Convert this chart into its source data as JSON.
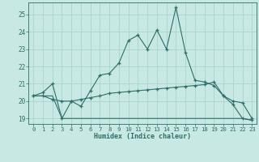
{
  "title": "",
  "xlabel": "Humidex (Indice chaleur)",
  "xlim": [
    -0.5,
    23.5
  ],
  "ylim": [
    18.7,
    25.7
  ],
  "yticks": [
    19,
    20,
    21,
    22,
    23,
    24,
    25
  ],
  "xticks": [
    0,
    1,
    2,
    3,
    4,
    5,
    6,
    7,
    8,
    9,
    10,
    11,
    12,
    13,
    14,
    15,
    16,
    17,
    18,
    19,
    20,
    21,
    22,
    23
  ],
  "bg_color": "#c8e8e4",
  "grid_color": "#aad4d0",
  "line_color": "#2e6e68",
  "line1_x": [
    0,
    1,
    2,
    3,
    4,
    5,
    6,
    7,
    8,
    9,
    10,
    11,
    12,
    13,
    14,
    15,
    16,
    17,
    18,
    19,
    20,
    21,
    22,
    23
  ],
  "line1_y": [
    20.3,
    20.5,
    21.0,
    19.0,
    20.0,
    19.7,
    20.6,
    21.5,
    21.6,
    22.2,
    23.5,
    23.8,
    23.0,
    24.1,
    23.0,
    25.4,
    22.8,
    21.2,
    21.1,
    20.9,
    20.3,
    19.8,
    19.0,
    18.9
  ],
  "line2_x": [
    0,
    1,
    2,
    3,
    4,
    5,
    6,
    7,
    8,
    9,
    10,
    11,
    12,
    13,
    14,
    15,
    16,
    17,
    18,
    19,
    20,
    21,
    22,
    23
  ],
  "line2_y": [
    20.3,
    20.3,
    20.1,
    20.0,
    20.0,
    20.1,
    20.2,
    20.3,
    20.45,
    20.5,
    20.55,
    20.6,
    20.65,
    20.7,
    20.75,
    20.8,
    20.85,
    20.9,
    20.95,
    21.1,
    20.3,
    20.0,
    19.9,
    19.0
  ],
  "line3_x": [
    0,
    1,
    2,
    3,
    4,
    5,
    6,
    7,
    8,
    9,
    10,
    11,
    12,
    13,
    14,
    15,
    16,
    17,
    18,
    19,
    20,
    21,
    22,
    23
  ],
  "line3_y": [
    20.3,
    20.3,
    20.3,
    19.0,
    19.0,
    19.0,
    19.0,
    19.0,
    19.0,
    19.0,
    19.0,
    19.0,
    19.0,
    19.0,
    19.0,
    19.0,
    19.0,
    19.0,
    19.0,
    19.0,
    19.0,
    19.0,
    19.0,
    18.9
  ],
  "figsize": [
    3.2,
    2.0
  ],
  "dpi": 100
}
